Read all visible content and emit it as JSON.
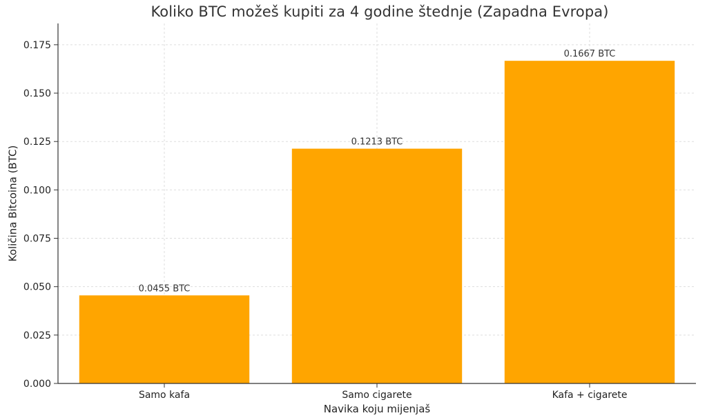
{
  "chart_data": {
    "type": "bar",
    "title": "Koliko BTC možeš kupiti za 4 godine štednje (Zapadna Evropa)",
    "xlabel": "Navika koju mijenjaš",
    "ylabel": "Količina Bitcoina (BTC)",
    "categories": [
      "Samo kafa",
      "Samo cigarete",
      "Kafa + cigarete"
    ],
    "values": [
      0.0455,
      0.1213,
      0.1667
    ],
    "data_labels": [
      "0.0455 BTC",
      "0.1213 BTC",
      "0.1667 BTC"
    ],
    "ylim": [
      0,
      0.186
    ],
    "yticks": [
      0.0,
      0.025,
      0.05,
      0.075,
      0.1,
      0.125,
      0.15,
      0.175
    ],
    "ytick_labels": [
      "0.000",
      "0.025",
      "0.050",
      "0.075",
      "0.100",
      "0.125",
      "0.150",
      "0.175"
    ],
    "grid": true,
    "bar_color": "#FFA500",
    "grid_color": "#dddddd",
    "axis_color": "#333333"
  }
}
